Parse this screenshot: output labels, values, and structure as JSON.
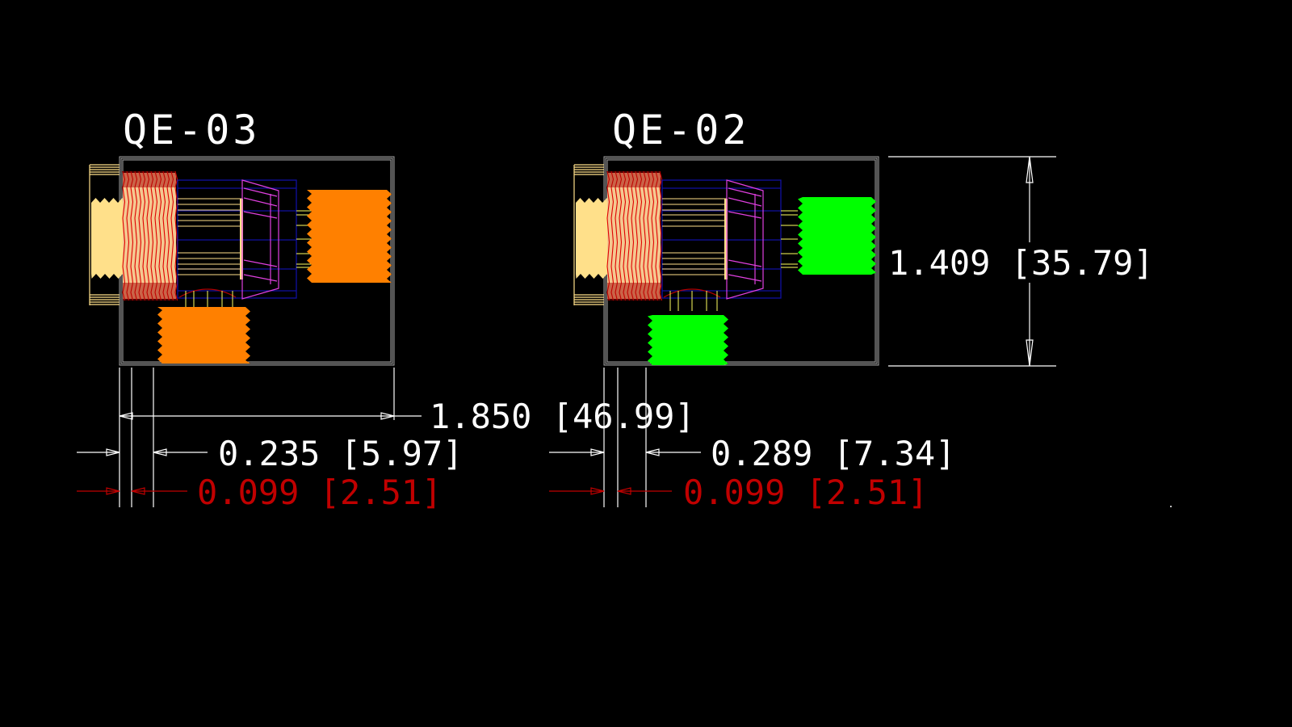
{
  "drawing": {
    "background": "#000000",
    "parts": [
      {
        "title": "QE-03",
        "fitting_color": "#ff8000"
      },
      {
        "title": "QE-02",
        "fitting_color": "#00ff00"
      }
    ],
    "dimensions": {
      "overall_length": "1.850 [46.99]",
      "height": "1.409 [35.79]",
      "offset_qe03": "0.235 [5.97]",
      "offset_qe02": "0.289 [7.34]",
      "wall_qe03": "0.099 [2.51]",
      "wall_qe02": "0.099 [2.51]"
    },
    "colors": {
      "outline": "#c0c0c0",
      "dimension": "#ffffff",
      "dimension_red": "#c00000",
      "cap": "#ffe08a",
      "thread_red": "#e00000",
      "bore_blue": "#1010a0",
      "cone_magenta": "#e040e0",
      "yellow_lines": "#ffff60"
    }
  }
}
